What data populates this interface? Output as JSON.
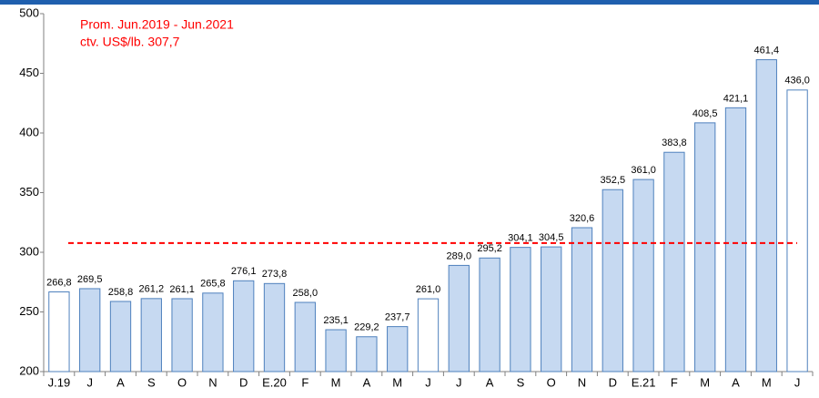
{
  "chart_data": {
    "type": "bar",
    "categories": [
      "J.19",
      "J",
      "A",
      "S",
      "O",
      "N",
      "D",
      "E.20",
      "F",
      "M",
      "A",
      "M",
      "J",
      "J",
      "A",
      "S",
      "O",
      "N",
      "D",
      "E.21",
      "F",
      "M",
      "A",
      "M",
      "J"
    ],
    "values": [
      266.8,
      269.5,
      258.8,
      261.2,
      261.1,
      265.8,
      276.1,
      273.8,
      258.0,
      235.1,
      229.2,
      237.7,
      261.0,
      289.0,
      295.2,
      304.1,
      304.5,
      320.6,
      352.5,
      361.0,
      383.8,
      408.5,
      421.1,
      461.4,
      436.0
    ],
    "value_labels": [
      "266,8",
      "269,5",
      "258,8",
      "261,2",
      "261,1",
      "265,8",
      "276,1",
      "273,8",
      "258,0",
      "235,1",
      "229,2",
      "237,7",
      "261,0",
      "289,0",
      "295,2",
      "304,1",
      "304,5",
      "320,6",
      "352,5",
      "361,0",
      "383,8",
      "408,5",
      "421,1",
      "461,4",
      "436,0"
    ],
    "colors": [
      "#ffffff",
      "#c6d9f1",
      "#c6d9f1",
      "#c6d9f1",
      "#c6d9f1",
      "#c6d9f1",
      "#c6d9f1",
      "#c6d9f1",
      "#c6d9f1",
      "#c6d9f1",
      "#c6d9f1",
      "#c6d9f1",
      "#ffffff",
      "#c6d9f1",
      "#c6d9f1",
      "#c6d9f1",
      "#c6d9f1",
      "#c6d9f1",
      "#c6d9f1",
      "#c6d9f1",
      "#c6d9f1",
      "#c6d9f1",
      "#c6d9f1",
      "#c6d9f1",
      "#ffffff"
    ],
    "edge_color": "#4f81bd",
    "ylim": [
      200,
      500
    ],
    "yticks": [
      200,
      250,
      300,
      350,
      400,
      450,
      500
    ],
    "average": {
      "value": 307.7,
      "color": "#ff0000",
      "label_lines": [
        "Prom. Jun.2019 - Jun.2021",
        "ctv. US$/lb. 307,7"
      ]
    }
  }
}
